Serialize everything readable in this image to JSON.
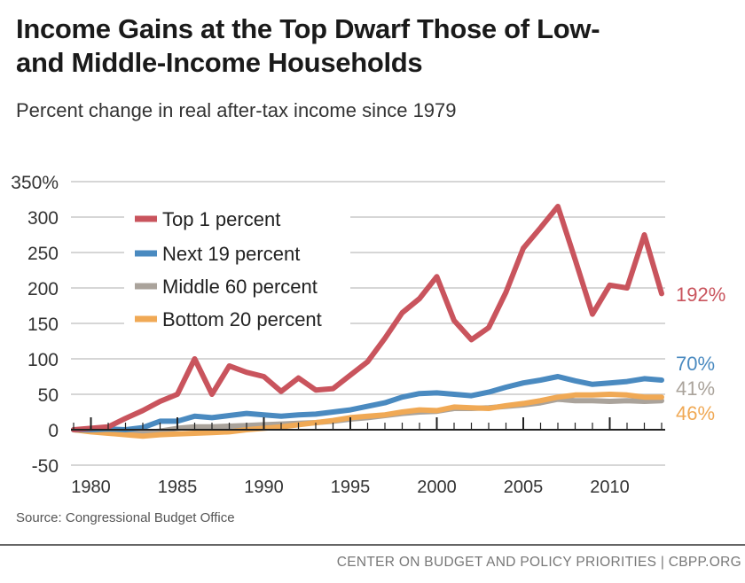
{
  "header": {
    "title_line1": "Income Gains at the Top Dwarf Those of Low-",
    "title_line2": "and Middle-Income Households",
    "subtitle": "Percent change in real after-tax income since 1979"
  },
  "footer": {
    "source": "Source: Congressional Budget Office",
    "credit": "CENTER ON BUDGET AND POLICY PRIORITIES | CBPP.ORG"
  },
  "chart_data": {
    "type": "line",
    "title": "Income Gains at the Top Dwarf Those of Low- and Middle-Income Households",
    "subtitle": "Percent change in real after-tax income since 1979",
    "xlabel": "",
    "ylabel": "",
    "xlim": [
      1979,
      2013
    ],
    "ylim": [
      -50,
      350
    ],
    "grid": true,
    "legend_placement": "top-left",
    "x_tick_labels": [
      "1980",
      "1985",
      "1990",
      "1995",
      "2000",
      "2005",
      "2010"
    ],
    "x_ticks": [
      1980,
      1985,
      1990,
      1995,
      2000,
      2005,
      2010
    ],
    "y_tick_labels": [
      "350%",
      "300",
      "250",
      "200",
      "150",
      "100",
      "50",
      "0",
      "-50"
    ],
    "y_ticks": [
      350,
      300,
      250,
      200,
      150,
      100,
      50,
      0,
      -50
    ],
    "x": [
      1979,
      1980,
      1981,
      1982,
      1983,
      1984,
      1985,
      1986,
      1987,
      1988,
      1989,
      1990,
      1991,
      1992,
      1993,
      1994,
      1995,
      1996,
      1997,
      1998,
      1999,
      2000,
      2001,
      2002,
      2003,
      2004,
      2005,
      2006,
      2007,
      2008,
      2009,
      2010,
      2011,
      2012,
      2013
    ],
    "series": [
      {
        "name": "Top 1 percent",
        "color": "#c9545d",
        "end_label": "192%",
        "values": [
          0,
          2,
          4,
          16,
          27,
          40,
          50,
          100,
          50,
          90,
          81,
          75,
          54,
          73,
          56,
          58,
          77,
          96,
          129,
          165,
          185,
          216,
          154,
          127,
          144,
          194,
          256,
          285,
          315,
          240,
          163,
          204,
          200,
          275,
          192
        ]
      },
      {
        "name": "Next 19 percent",
        "color": "#4a8ac0",
        "end_label": "70%",
        "values": [
          0,
          0,
          1,
          0,
          3,
          12,
          12,
          19,
          17,
          20,
          23,
          21,
          19,
          21,
          22,
          25,
          28,
          33,
          38,
          46,
          51,
          52,
          50,
          48,
          53,
          60,
          66,
          70,
          75,
          69,
          64,
          66,
          68,
          72,
          70
        ]
      },
      {
        "name": "Middle 60 percent",
        "color": "#aaa39b",
        "end_label": "41%",
        "values": [
          0,
          -2,
          -3,
          -4,
          -4,
          -2,
          2,
          4,
          4,
          5,
          6,
          7,
          8,
          9,
          10,
          12,
          15,
          17,
          20,
          23,
          25,
          26,
          30,
          30,
          31,
          33,
          35,
          38,
          43,
          41,
          41,
          40,
          41,
          40,
          41
        ]
      },
      {
        "name": "Bottom 20 percent",
        "color": "#f0a955",
        "end_label": "46%",
        "values": [
          0,
          -3,
          -5,
          -7,
          -9,
          -7,
          -6,
          -5,
          -4,
          -3,
          0,
          2,
          4,
          7,
          10,
          13,
          17,
          19,
          21,
          25,
          28,
          27,
          32,
          31,
          30,
          34,
          37,
          41,
          46,
          49,
          49,
          50,
          49,
          46,
          46
        ]
      }
    ]
  }
}
